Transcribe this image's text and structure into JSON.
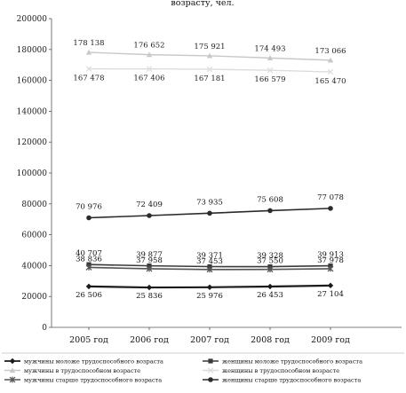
{
  "chart_data": {
    "type": "line",
    "title": "возрасту, чел.",
    "categories": [
      "2005 год",
      "2006 год",
      "2007 год",
      "2008 год",
      "2009 год"
    ],
    "ylim": [
      0,
      200000
    ],
    "yticks": [
      "0",
      "20000",
      "40000",
      "60000",
      "80000",
      "100000",
      "120000",
      "140000",
      "160000",
      "180000",
      "200000"
    ],
    "grid": false,
    "legend_position": "bottom",
    "series": [
      {
        "name": "мужчины моложе трудоспособного возраста",
        "values": [
          26506,
          25836,
          25976,
          26453,
          27104
        ],
        "labels": [
          "26 506",
          "25 836",
          "25 976",
          "26 453",
          "27 104"
        ],
        "color": "#1a1a1a",
        "marker": "diamond"
      },
      {
        "name": "женщины моложе трудоспособного возраста",
        "values": [
          40707,
          39877,
          39371,
          39328,
          39913
        ],
        "labels": [
          "40 707",
          "39 877",
          "39 371",
          "39 328",
          "39 913"
        ],
        "color": "#3a3a3a",
        "marker": "square"
      },
      {
        "name": "мужчины в трудоспособном возрасте",
        "values": [
          178138,
          176652,
          175921,
          174493,
          173066
        ],
        "labels": [
          "178 138",
          "176 652",
          "175 921",
          "174 493",
          "173 066"
        ],
        "color": "#c8c8c8",
        "marker": "triangle"
      },
      {
        "name": "женщины в трудоспособном возрасте",
        "values": [
          167478,
          167406,
          167181,
          166579,
          165470
        ],
        "labels": [
          "167 478",
          "167 406",
          "167 181",
          "166 579",
          "165 470"
        ],
        "color": "#dcdcdc",
        "marker": "x"
      },
      {
        "name": "мужчины старше трудоспособного возраста",
        "values": [
          38836,
          37958,
          37453,
          37550,
          37978
        ],
        "labels": [
          "38 836",
          "37 958",
          "37 453",
          "37 550",
          "37 978"
        ],
        "color": "#555555",
        "marker": "star"
      },
      {
        "name": "женщины старше трудоспособного возраста",
        "values": [
          70976,
          72409,
          73935,
          75608,
          77078
        ],
        "labels": [
          "70 976",
          "72 409",
          "73 935",
          "75 608",
          "77 078"
        ],
        "color": "#2b2b2b",
        "marker": "circle"
      }
    ]
  }
}
